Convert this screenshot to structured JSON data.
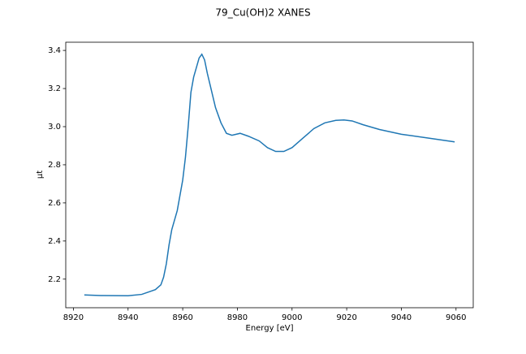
{
  "chart_data": {
    "type": "line",
    "title": "79_Cu(OH)2 XANES",
    "x_label": "Energy [eV]",
    "y_label": "μt",
    "x": [
      8924,
      8930,
      8940,
      8945,
      8948,
      8950,
      8952,
      8953,
      8954,
      8955,
      8956,
      8958,
      8960,
      8961,
      8962,
      8963,
      8964,
      8965,
      8966,
      8967,
      8968,
      8969,
      8970,
      8972,
      8974,
      8976,
      8978,
      8981,
      8984,
      8988,
      8991,
      8994,
      8997,
      9000,
      9004,
      9008,
      9012,
      9016,
      9019,
      9022,
      9026,
      9032,
      9040,
      9050,
      9059.5
    ],
    "series": [
      {
        "color": "#1f77b4",
        "values": [
          2.117,
          2.114,
          2.113,
          2.12,
          2.135,
          2.145,
          2.17,
          2.21,
          2.28,
          2.38,
          2.46,
          2.56,
          2.72,
          2.84,
          3.0,
          3.18,
          3.26,
          3.31,
          3.36,
          3.38,
          3.35,
          3.28,
          3.22,
          3.1,
          3.02,
          2.965,
          2.955,
          2.965,
          2.95,
          2.925,
          2.89,
          2.87,
          2.87,
          2.89,
          2.94,
          2.99,
          3.02,
          3.033,
          3.035,
          3.03,
          3.01,
          2.985,
          2.96,
          2.94,
          2.92
        ]
      }
    ],
    "xlim": [
      8917.2,
      9066.3
    ],
    "xticks": [
      8920,
      8940,
      8960,
      8980,
      9000,
      9020,
      9040,
      9060
    ],
    "ylim": [
      2.05,
      3.443
    ],
    "yticks": [
      2.2,
      2.4,
      2.6,
      2.8,
      {
        "value": 3,
        "label": "3.0"
      },
      3.2,
      3.4
    ],
    "grid": false
  }
}
